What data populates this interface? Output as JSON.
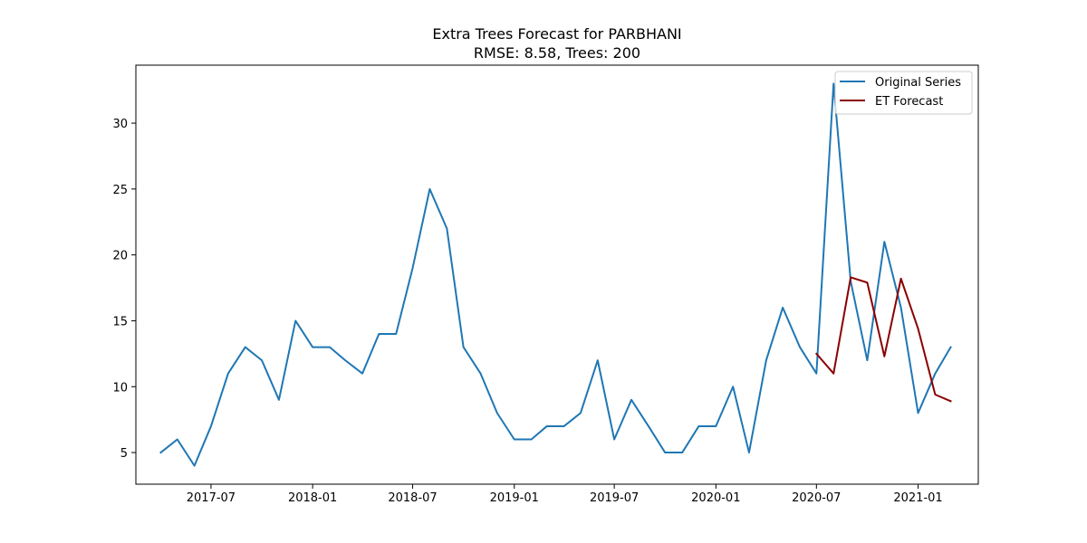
{
  "chart_data": {
    "type": "line",
    "title": "Extra Trees Forecast for PARBHANI",
    "subtitle": "RMSE: 8.58, Trees: 200",
    "xlabel": "",
    "ylabel": "",
    "x_axis": {
      "type": "date",
      "range": [
        "2017-02-15",
        "2021-04-20"
      ],
      "ticks": [
        "2017-07-01",
        "2018-01-01",
        "2018-07-01",
        "2019-01-01",
        "2019-07-01",
        "2020-01-01",
        "2020-07-01",
        "2021-01-01"
      ],
      "tick_labels": [
        "2017-07",
        "2018-01",
        "2018-07",
        "2019-01",
        "2019-07",
        "2020-01",
        "2020-07",
        "2021-01"
      ]
    },
    "y_axis": {
      "range": [
        2.6,
        34.4
      ],
      "ticks": [
        5,
        10,
        15,
        20,
        25,
        30
      ],
      "tick_labels": [
        "5",
        "10",
        "15",
        "20",
        "25",
        "30"
      ]
    },
    "grid": false,
    "legend": {
      "position": "top-right",
      "entries": [
        "Original Series",
        "ET Forecast"
      ]
    },
    "series": [
      {
        "name": "Original Series",
        "color": "#1f77b4",
        "x": [
          "2017-04",
          "2017-05",
          "2017-06",
          "2017-07",
          "2017-08",
          "2017-09",
          "2017-10",
          "2017-11",
          "2017-12",
          "2018-01",
          "2018-02",
          "2018-03",
          "2018-04",
          "2018-05",
          "2018-06",
          "2018-07",
          "2018-08",
          "2018-09",
          "2018-10",
          "2018-11",
          "2018-12",
          "2019-01",
          "2019-02",
          "2019-03",
          "2019-04",
          "2019-05",
          "2019-06",
          "2019-07",
          "2019-08",
          "2019-09",
          "2019-10",
          "2019-11",
          "2019-12",
          "2020-01",
          "2020-02",
          "2020-03",
          "2020-04",
          "2020-05",
          "2020-06",
          "2020-07",
          "2020-08",
          "2020-09",
          "2020-10",
          "2020-11",
          "2020-12",
          "2021-01",
          "2021-02",
          "2021-03"
        ],
        "values": [
          5,
          6,
          4,
          7,
          11,
          13,
          12,
          9,
          15,
          13,
          13,
          12,
          11,
          14,
          14,
          19,
          25,
          22,
          13,
          11,
          8,
          6,
          6,
          7,
          7,
          8,
          12,
          6,
          9,
          7,
          5,
          5,
          7,
          7,
          10,
          5,
          12,
          16,
          13,
          11,
          33,
          18,
          12,
          21,
          16,
          8,
          11,
          13
        ]
      },
      {
        "name": "ET Forecast",
        "color": "#8b0000",
        "x": [
          "2020-07",
          "2020-08",
          "2020-09",
          "2020-10",
          "2020-11",
          "2020-12",
          "2021-01",
          "2021-02",
          "2021-03"
        ],
        "values": [
          12.5,
          11.0,
          18.3,
          17.9,
          12.3,
          18.2,
          14.4,
          9.4,
          8.9
        ]
      }
    ]
  }
}
